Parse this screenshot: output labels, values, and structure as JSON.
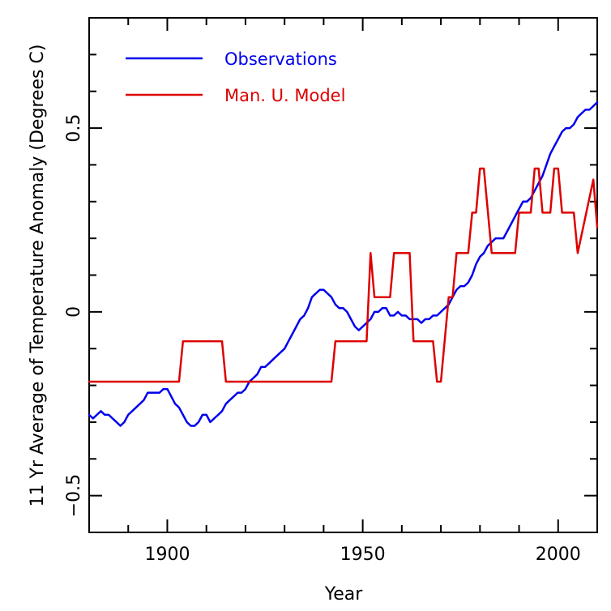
{
  "chart_data": {
    "type": "line",
    "title": "",
    "xlabel": "Year",
    "ylabel": "11 Yr Average of Temperature Anomaly (Degrees C)",
    "xlim": [
      1880,
      2010
    ],
    "ylim": [
      -0.6,
      0.8
    ],
    "grid": false,
    "legend_position": "top-left",
    "x_ticks": [
      {
        "value": 1900,
        "label": "1900"
      },
      {
        "value": 1950,
        "label": "1950"
      },
      {
        "value": 2000,
        "label": "2000"
      }
    ],
    "x_minor_ticks": [
      1890,
      1910,
      1920,
      1930,
      1940,
      1960,
      1970,
      1980,
      1990
    ],
    "y_ticks": [
      {
        "value": -0.5,
        "label": "−0.5"
      },
      {
        "value": 0,
        "label": "0"
      },
      {
        "value": 0.5,
        "label": "0.5"
      }
    ],
    "y_minor_ticks": [
      -0.6,
      -0.4,
      -0.3,
      -0.2,
      -0.1,
      0.1,
      0.2,
      0.3,
      0.4,
      0.6,
      0.7
    ],
    "series": [
      {
        "name": "Observations",
        "color": "#0000ee",
        "x": [
          1880,
          1881,
          1882,
          1883,
          1884,
          1885,
          1886,
          1887,
          1888,
          1889,
          1890,
          1891,
          1892,
          1893,
          1894,
          1895,
          1896,
          1897,
          1898,
          1899,
          1900,
          1901,
          1902,
          1903,
          1904,
          1905,
          1906,
          1907,
          1908,
          1909,
          1910,
          1911,
          1912,
          1913,
          1914,
          1915,
          1916,
          1917,
          1918,
          1919,
          1920,
          1921,
          1922,
          1923,
          1924,
          1925,
          1926,
          1927,
          1928,
          1929,
          1930,
          1931,
          1932,
          1933,
          1934,
          1935,
          1936,
          1937,
          1938,
          1939,
          1940,
          1941,
          1942,
          1943,
          1944,
          1945,
          1946,
          1947,
          1948,
          1949,
          1950,
          1951,
          1952,
          1953,
          1954,
          1955,
          1956,
          1957,
          1958,
          1959,
          1960,
          1961,
          1962,
          1963,
          1964,
          1965,
          1966,
          1967,
          1968,
          1969,
          1970,
          1971,
          1972,
          1973,
          1974,
          1975,
          1976,
          1977,
          1978,
          1979,
          1980,
          1981,
          1982,
          1983,
          1984,
          1985,
          1986,
          1987,
          1988,
          1989,
          1990,
          1991,
          1992,
          1993,
          1994,
          1995,
          1996,
          1997,
          1998,
          1999,
          2000,
          2001,
          2002,
          2003,
          2004,
          2005,
          2006,
          2007,
          2008,
          2009,
          2010
        ],
        "y": [
          -0.28,
          -0.29,
          -0.28,
          -0.27,
          -0.28,
          -0.28,
          -0.29,
          -0.3,
          -0.31,
          -0.3,
          -0.28,
          -0.27,
          -0.26,
          -0.25,
          -0.24,
          -0.22,
          -0.22,
          -0.22,
          -0.22,
          -0.21,
          -0.21,
          -0.23,
          -0.25,
          -0.26,
          -0.28,
          -0.3,
          -0.31,
          -0.31,
          -0.3,
          -0.28,
          -0.28,
          -0.3,
          -0.29,
          -0.28,
          -0.27,
          -0.25,
          -0.24,
          -0.23,
          -0.22,
          -0.22,
          -0.21,
          -0.19,
          -0.18,
          -0.17,
          -0.15,
          -0.15,
          -0.14,
          -0.13,
          -0.12,
          -0.11,
          -0.1,
          -0.08,
          -0.06,
          -0.04,
          -0.02,
          -0.01,
          0.01,
          0.04,
          0.05,
          0.06,
          0.06,
          0.05,
          0.04,
          0.02,
          0.01,
          0.01,
          0.0,
          -0.02,
          -0.04,
          -0.05,
          -0.04,
          -0.03,
          -0.02,
          0.0,
          0.0,
          0.01,
          0.01,
          -0.01,
          -0.01,
          0.0,
          -0.01,
          -0.01,
          -0.02,
          -0.02,
          -0.02,
          -0.03,
          -0.02,
          -0.02,
          -0.01,
          -0.01,
          0.0,
          0.01,
          0.02,
          0.04,
          0.06,
          0.07,
          0.07,
          0.08,
          0.1,
          0.13,
          0.15,
          0.16,
          0.18,
          0.19,
          0.2,
          0.2,
          0.2,
          0.22,
          0.24,
          0.26,
          0.28,
          0.3,
          0.3,
          0.31,
          0.33,
          0.35,
          0.37,
          0.4,
          0.43,
          0.45,
          0.47,
          0.49,
          0.5,
          0.5,
          0.51,
          0.53,
          0.54,
          0.55,
          0.55,
          0.56,
          0.57
        ]
      },
      {
        "name": "Man. U. Model",
        "color": "#dd0000",
        "x": [
          1880,
          1903,
          1904,
          1914,
          1915,
          1942,
          1943,
          1951,
          1952,
          1953,
          1954,
          1957,
          1958,
          1962,
          1963,
          1967,
          1968,
          1969,
          1970,
          1972,
          1973,
          1974,
          1977,
          1978,
          1979,
          1980,
          1981,
          1983,
          1984,
          1989,
          1990,
          1993,
          1994,
          1995,
          1996,
          1998,
          1999,
          2000,
          2001,
          2004,
          2005,
          2009,
          2010
        ],
        "y": [
          -0.19,
          -0.19,
          -0.08,
          -0.08,
          -0.19,
          -0.19,
          -0.08,
          -0.08,
          0.16,
          0.04,
          0.04,
          0.04,
          0.16,
          0.16,
          -0.08,
          -0.08,
          -0.08,
          -0.19,
          -0.19,
          0.04,
          0.04,
          0.16,
          0.16,
          0.27,
          0.27,
          0.39,
          0.39,
          0.16,
          0.16,
          0.16,
          0.27,
          0.27,
          0.39,
          0.39,
          0.27,
          0.27,
          0.39,
          0.39,
          0.27,
          0.27,
          0.16,
          0.36,
          0.23
        ]
      }
    ]
  }
}
